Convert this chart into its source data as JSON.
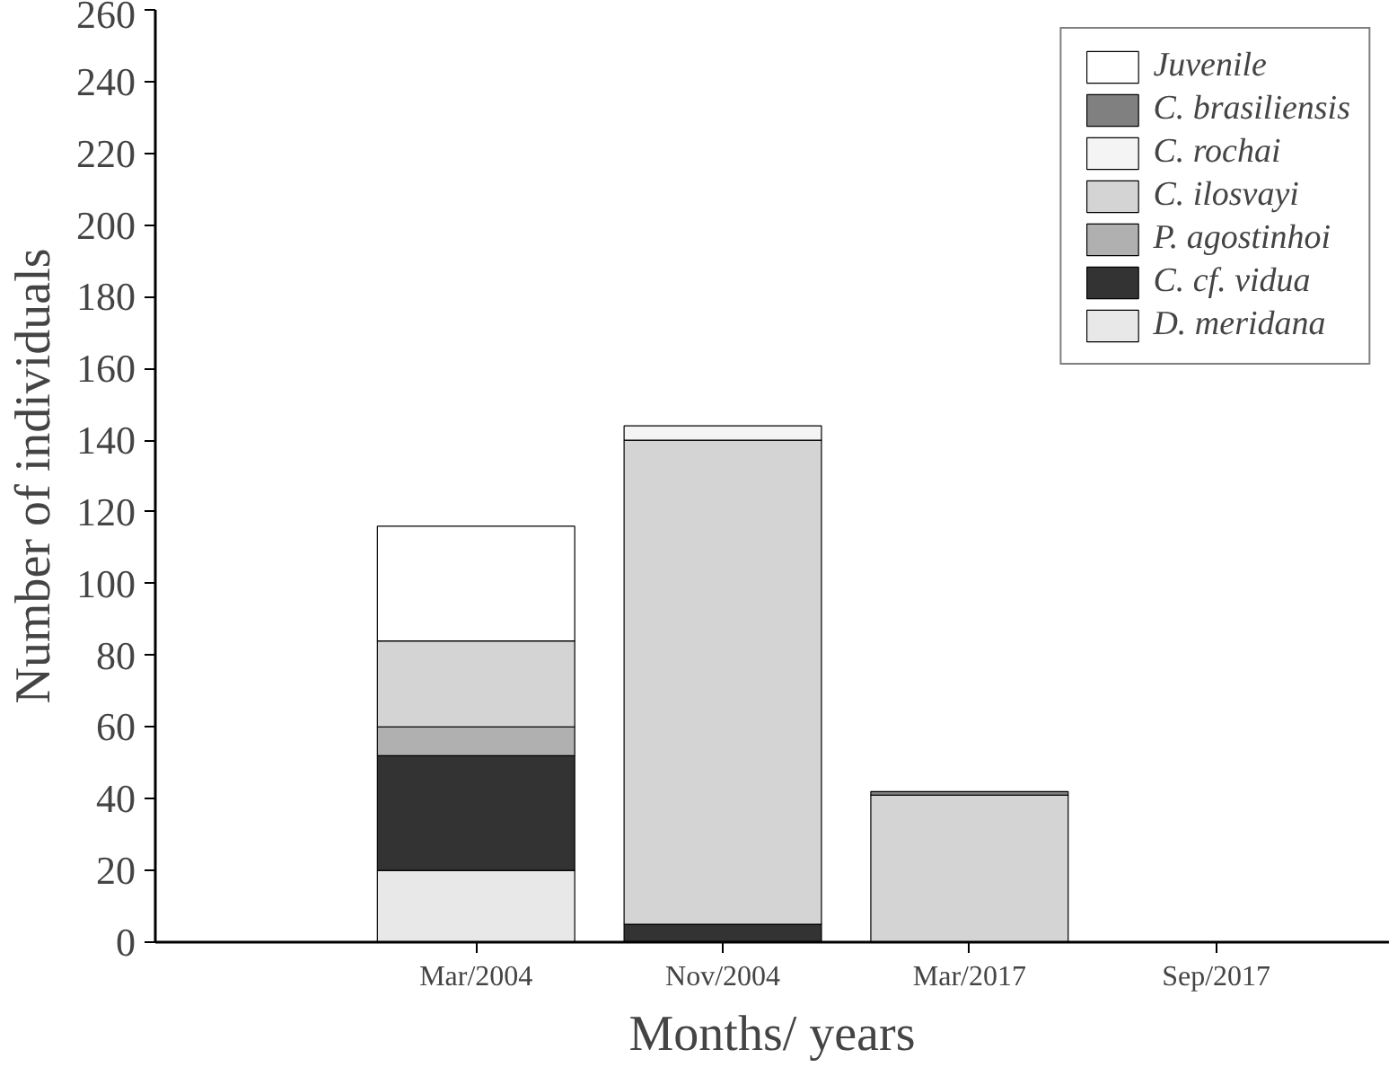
{
  "chart_data": {
    "type": "bar",
    "stacked": true,
    "xlabel": "Months/ years",
    "ylabel": "Number of individuals",
    "categories": [
      "Mar/2004",
      "Nov/2004",
      "Mar/2017",
      "Sep/2017"
    ],
    "series": [
      {
        "name": "D. meridana",
        "color": "#e8e8e8",
        "values": [
          20,
          0,
          0,
          0
        ]
      },
      {
        "name": "C. cf. vidua",
        "color": "#333333",
        "values": [
          32,
          5,
          0,
          0
        ]
      },
      {
        "name": "P. agostinhoi",
        "color": "#b0b0b0",
        "values": [
          8,
          0,
          0,
          0
        ]
      },
      {
        "name": "C. ilosvayi",
        "color": "#d4d4d4",
        "values": [
          24,
          135,
          41,
          0
        ]
      },
      {
        "name": "C. rochai",
        "color": "#f4f4f4",
        "values": [
          0,
          4,
          0,
          0
        ]
      },
      {
        "name": "C. brasiliensis",
        "color": "#808080",
        "values": [
          0,
          0,
          1,
          0
        ]
      },
      {
        "name": "Juvenile",
        "color": "#ffffff",
        "values": [
          32,
          0,
          0,
          0
        ]
      }
    ],
    "ylim": [
      0,
      260
    ],
    "yticks": [
      0,
      20,
      40,
      60,
      80,
      100,
      120,
      140,
      160,
      180,
      200,
      220,
      240,
      260
    ],
    "grid": false,
    "legend": "top right"
  }
}
